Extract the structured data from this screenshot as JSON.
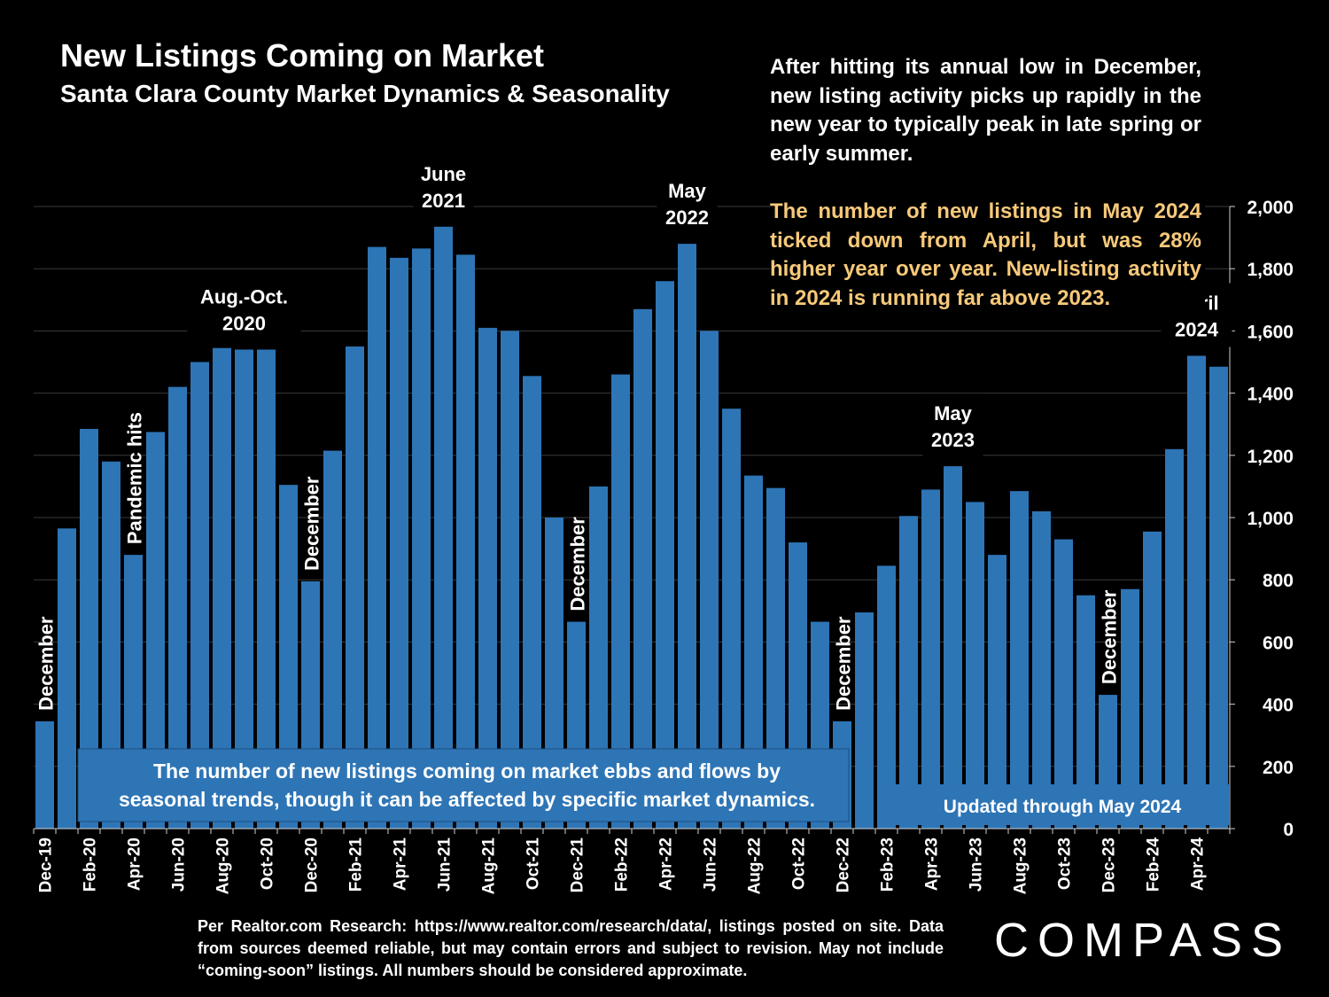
{
  "title": "New Listings Coming on Market",
  "subtitle": "Santa Clara County Market Dynamics & Seasonality",
  "note_top": "After hitting its annual low in December, new listing activity picks up rapidly in the new year to typically peak in late spring or early summer.",
  "note_highlight": "The number of new listings in May 2024 ticked down from April, but was 28% higher year over year. New-listing activity in 2024 is running far above 2023.",
  "callout_bottom": [
    "The number of new listings coming on market ebbs and flows by",
    "seasonal trends, though it can be affected by specific market dynamics."
  ],
  "updated_label": "Updated through May 2024",
  "footer": "Per Realtor.com Research: https://www.realtor.com/research/data/, listings posted on site. Data from sources deemed reliable, but may contain errors and subject to revision. May not include “coming-soon” listings. All numbers should be considered approximate.",
  "logo": "COMPASS",
  "colors": {
    "bar": "#2E75B6",
    "background": "#000000",
    "text": "#FFFFFF",
    "highlight": "#F7C97A",
    "callout_bg": "#2E75B6"
  },
  "chart_data": {
    "type": "bar",
    "title": "New Listings Coming on Market",
    "xlabel": "",
    "ylabel": "",
    "ylim": [
      0,
      2000
    ],
    "yticks": [
      0,
      200,
      400,
      600,
      800,
      1000,
      1200,
      1400,
      1600,
      1800,
      2000
    ],
    "ytick_labels": [
      "0",
      "200",
      "400",
      "600",
      "800",
      "1,000",
      "1,200",
      "1,400",
      "1,600",
      "1,800",
      "2,000"
    ],
    "y_axis_side": "right",
    "categories": [
      "Dec-19",
      "Jan-20",
      "Feb-20",
      "Mar-20",
      "Apr-20",
      "May-20",
      "Jun-20",
      "Jul-20",
      "Aug-20",
      "Sep-20",
      "Oct-20",
      "Nov-20",
      "Dec-20",
      "Jan-21",
      "Feb-21",
      "Mar-21",
      "Apr-21",
      "May-21",
      "Jun-21",
      "Jul-21",
      "Aug-21",
      "Sep-21",
      "Oct-21",
      "Nov-21",
      "Dec-21",
      "Jan-22",
      "Feb-22",
      "Mar-22",
      "Apr-22",
      "May-22",
      "Jun-22",
      "Jul-22",
      "Aug-22",
      "Sep-22",
      "Oct-22",
      "Nov-22",
      "Dec-22",
      "Jan-23",
      "Feb-23",
      "Mar-23",
      "Apr-23",
      "May-23",
      "Jun-23",
      "Jul-23",
      "Aug-23",
      "Sep-23",
      "Oct-23",
      "Nov-23",
      "Dec-23",
      "Jan-24",
      "Feb-24",
      "Mar-24",
      "Apr-24",
      "May-24"
    ],
    "xtick_labels_shown": [
      "Dec-19",
      "Feb-20",
      "Apr-20",
      "Jun-20",
      "Aug-20",
      "Oct-20",
      "Dec-20",
      "Feb-21",
      "Apr-21",
      "Jun-21",
      "Aug-21",
      "Oct-21",
      "Dec-21",
      "Feb-22",
      "Apr-22",
      "Jun-22",
      "Aug-22",
      "Oct-22",
      "Dec-22",
      "Feb-23",
      "Apr-23",
      "Jun-23",
      "Aug-23",
      "Oct-23",
      "Dec-23",
      "Feb-24",
      "Apr-24"
    ],
    "values": [
      345,
      965,
      1285,
      1180,
      880,
      1275,
      1420,
      1500,
      1545,
      1540,
      1540,
      1105,
      795,
      1215,
      1550,
      1870,
      1835,
      1865,
      1935,
      1845,
      1610,
      1600,
      1455,
      1000,
      665,
      1100,
      1460,
      1670,
      1760,
      1880,
      1600,
      1350,
      1135,
      1095,
      920,
      665,
      345,
      695,
      845,
      1005,
      1090,
      1165,
      1050,
      880,
      1085,
      1020,
      930,
      750,
      430,
      770,
      955,
      1220,
      1520,
      1485
    ],
    "annotations": [
      {
        "index": 0,
        "text": "December",
        "rotated": true
      },
      {
        "index": 4,
        "text": "Pandemic hits",
        "rotated": true
      },
      {
        "index": 9,
        "text": [
          "Aug.-Oct.",
          "2020"
        ],
        "rotated": false
      },
      {
        "index": 12,
        "text": "December",
        "rotated": true
      },
      {
        "index": 18,
        "text": [
          "June",
          "2021"
        ],
        "rotated": false
      },
      {
        "index": 24,
        "text": "December",
        "rotated": true
      },
      {
        "index": 29,
        "text": [
          "May",
          "2022"
        ],
        "rotated": false
      },
      {
        "index": 36,
        "text": "December",
        "rotated": true
      },
      {
        "index": 41,
        "text": [
          "May",
          "2023"
        ],
        "rotated": false
      },
      {
        "index": 48,
        "text": "December",
        "rotated": true
      },
      {
        "index": 52,
        "text": [
          "April",
          "2024"
        ],
        "rotated": false
      }
    ],
    "grid": true
  }
}
